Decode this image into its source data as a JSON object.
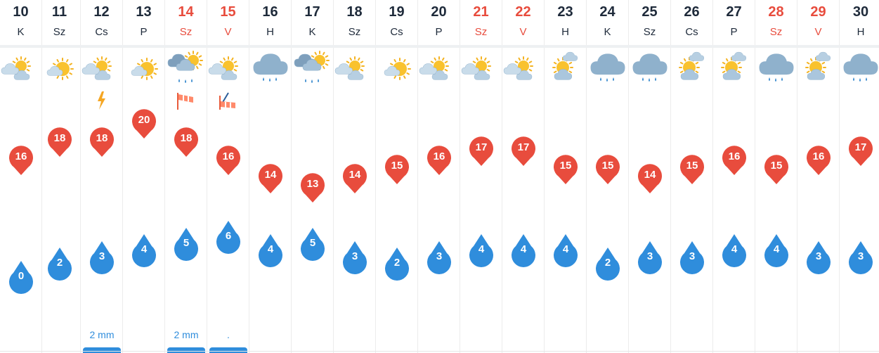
{
  "colors": {
    "weekday_text": "#1e2a3a",
    "weekend_text": "#e84c3d",
    "temperature_marker": "#e84c3d",
    "rain_marker": "#2f8ddc",
    "precip_text": "#2f8ddc"
  },
  "days": [
    {
      "day": "10",
      "dow": "K",
      "weekend": false,
      "weather_icon": "partly-cloudy-icon",
      "temp_max": "16",
      "rain_chance": "0",
      "precip": "",
      "extra_icon": ""
    },
    {
      "day": "11",
      "dow": "Sz",
      "weekend": false,
      "weather_icon": "sunny-icon",
      "temp_max": "18",
      "rain_chance": "2",
      "precip": "",
      "extra_icon": ""
    },
    {
      "day": "12",
      "dow": "Cs",
      "weekend": false,
      "weather_icon": "partly-cloudy-icon",
      "temp_max": "18",
      "rain_chance": "3",
      "precip": "2 mm",
      "extra_icon": "lightning-icon"
    },
    {
      "day": "13",
      "dow": "P",
      "weekend": false,
      "weather_icon": "sunny-icon",
      "temp_max": "20",
      "rain_chance": "4",
      "precip": "",
      "extra_icon": ""
    },
    {
      "day": "14",
      "dow": "Sz",
      "weekend": true,
      "weather_icon": "sun-cloud-rain-icon",
      "temp_max": "18",
      "rain_chance": "5",
      "precip": "2 mm",
      "extra_icon": "windsock-icon"
    },
    {
      "day": "15",
      "dow": "V",
      "weekend": true,
      "weather_icon": "partly-cloudy-icon",
      "temp_max": "16",
      "rain_chance": "6",
      "precip": ".",
      "extra_icon": "gusty-windsock-icon"
    },
    {
      "day": "16",
      "dow": "H",
      "weekend": false,
      "weather_icon": "rain-cloud-icon",
      "temp_max": "14",
      "rain_chance": "4",
      "precip": "",
      "extra_icon": ""
    },
    {
      "day": "17",
      "dow": "K",
      "weekend": false,
      "weather_icon": "sun-cloud-rain-icon",
      "temp_max": "13",
      "rain_chance": "5",
      "precip": "",
      "extra_icon": ""
    },
    {
      "day": "18",
      "dow": "Sz",
      "weekend": false,
      "weather_icon": "partly-cloudy-icon",
      "temp_max": "14",
      "rain_chance": "3",
      "precip": "",
      "extra_icon": ""
    },
    {
      "day": "19",
      "dow": "Cs",
      "weekend": false,
      "weather_icon": "sunny-icon",
      "temp_max": "15",
      "rain_chance": "2",
      "precip": "",
      "extra_icon": ""
    },
    {
      "day": "20",
      "dow": "P",
      "weekend": false,
      "weather_icon": "partly-cloudy-icon",
      "temp_max": "16",
      "rain_chance": "3",
      "precip": "",
      "extra_icon": ""
    },
    {
      "day": "21",
      "dow": "Sz",
      "weekend": true,
      "weather_icon": "partly-cloudy-icon",
      "temp_max": "17",
      "rain_chance": "4",
      "precip": "",
      "extra_icon": ""
    },
    {
      "day": "22",
      "dow": "V",
      "weekend": true,
      "weather_icon": "partly-cloudy-icon",
      "temp_max": "17",
      "rain_chance": "4",
      "precip": "",
      "extra_icon": ""
    },
    {
      "day": "23",
      "dow": "H",
      "weekend": false,
      "weather_icon": "mostly-cloudy-icon",
      "temp_max": "15",
      "rain_chance": "4",
      "precip": "",
      "extra_icon": ""
    },
    {
      "day": "24",
      "dow": "K",
      "weekend": false,
      "weather_icon": "rain-cloud-icon",
      "temp_max": "15",
      "rain_chance": "2",
      "precip": "",
      "extra_icon": ""
    },
    {
      "day": "25",
      "dow": "Sz",
      "weekend": false,
      "weather_icon": "rain-cloud-icon",
      "temp_max": "14",
      "rain_chance": "3",
      "precip": "",
      "extra_icon": ""
    },
    {
      "day": "26",
      "dow": "Cs",
      "weekend": false,
      "weather_icon": "mostly-cloudy-icon",
      "temp_max": "15",
      "rain_chance": "3",
      "precip": "",
      "extra_icon": ""
    },
    {
      "day": "27",
      "dow": "P",
      "weekend": false,
      "weather_icon": "mostly-cloudy-icon",
      "temp_max": "16",
      "rain_chance": "4",
      "precip": "",
      "extra_icon": ""
    },
    {
      "day": "28",
      "dow": "Sz",
      "weekend": true,
      "weather_icon": "rain-cloud-icon",
      "temp_max": "15",
      "rain_chance": "4",
      "precip": "",
      "extra_icon": ""
    },
    {
      "day": "29",
      "dow": "V",
      "weekend": true,
      "weather_icon": "mostly-cloudy-icon",
      "temp_max": "16",
      "rain_chance": "3",
      "precip": "",
      "extra_icon": ""
    },
    {
      "day": "30",
      "dow": "H",
      "weekend": false,
      "weather_icon": "rain-cloud-icon",
      "temp_max": "17",
      "rain_chance": "3",
      "precip": "",
      "extra_icon": ""
    }
  ]
}
